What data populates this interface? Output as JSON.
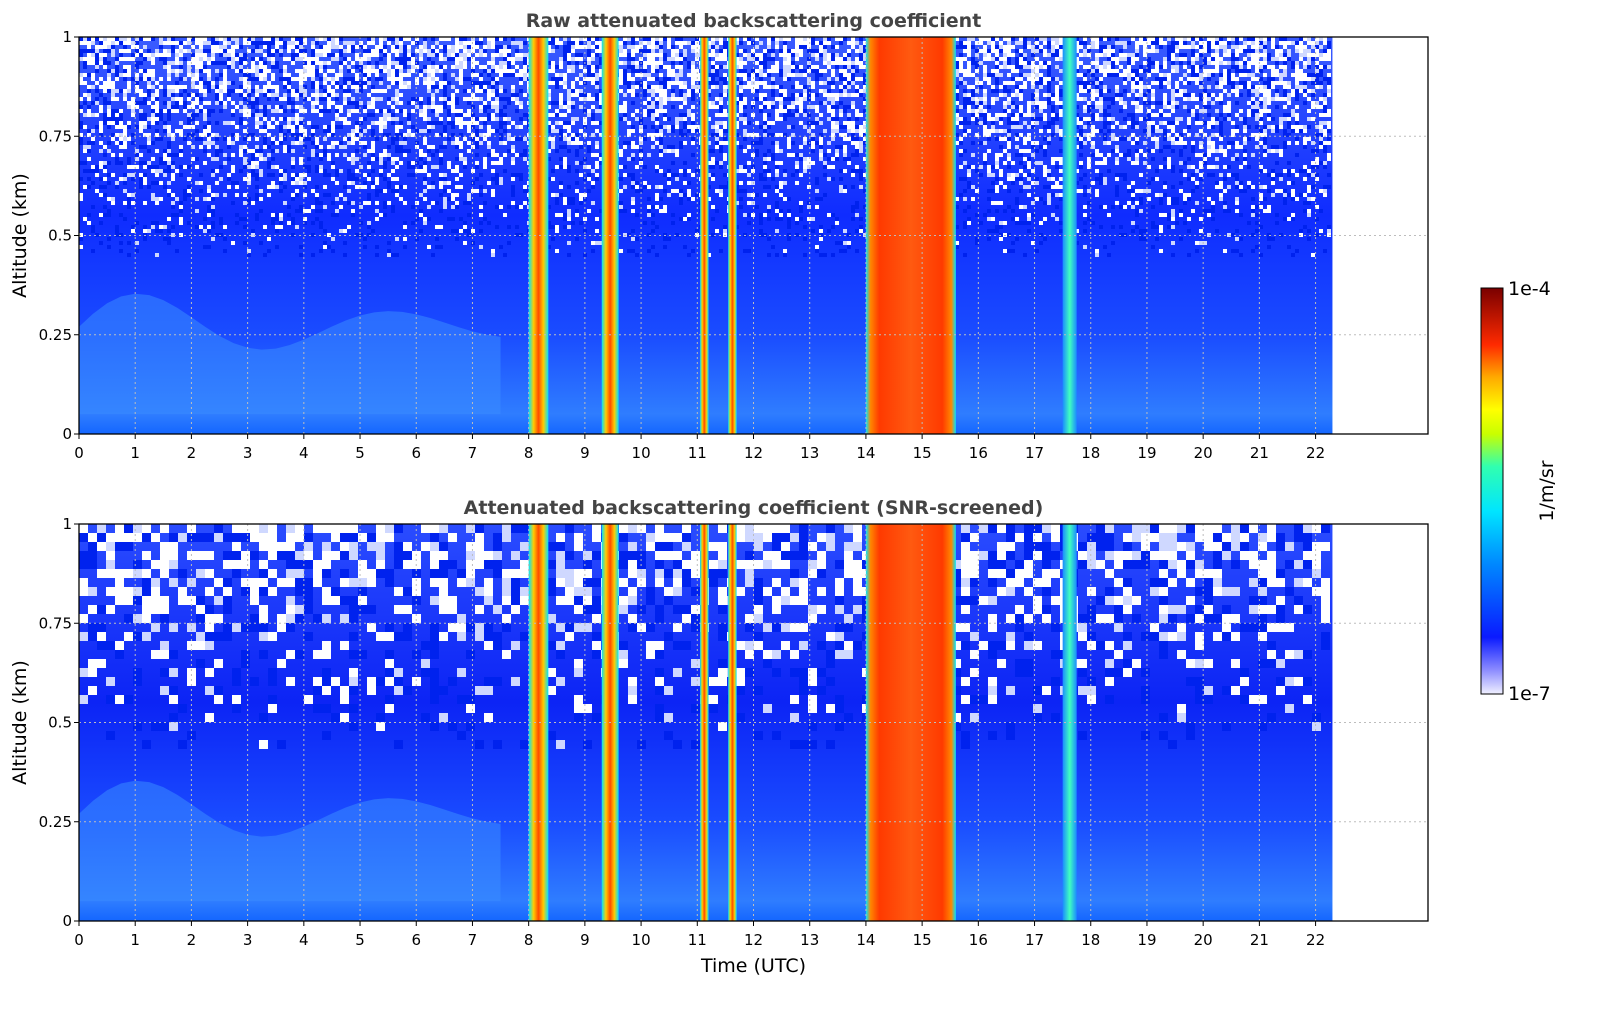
{
  "chart_data": [
    {
      "type": "heatmap",
      "title": "Raw attenuated backscattering coefficient",
      "xlabel": "",
      "ylabel": "Altitude (km)",
      "xlim": [
        0,
        24
      ],
      "ylim": [
        0,
        1
      ],
      "data_end": 22.3,
      "x_ticks": [
        "0",
        "1",
        "2",
        "3",
        "4",
        "5",
        "6",
        "7",
        "8",
        "9",
        "10",
        "11",
        "12",
        "13",
        "14",
        "15",
        "16",
        "17",
        "18",
        "19",
        "20",
        "21",
        "22"
      ],
      "y_ticks": [
        "0",
        "0.25",
        "0.5",
        "0.75",
        "1"
      ],
      "grid": true,
      "screened": false
    },
    {
      "type": "heatmap",
      "title": "Attenuated backscattering coefficient (SNR-screened)",
      "xlabel": "Time (UTC)",
      "ylabel": "Altitude (km)",
      "xlim": [
        0,
        24
      ],
      "ylim": [
        0,
        1
      ],
      "data_end": 22.3,
      "x_ticks": [
        "0",
        "1",
        "2",
        "3",
        "4",
        "5",
        "6",
        "7",
        "8",
        "9",
        "10",
        "11",
        "12",
        "13",
        "14",
        "15",
        "16",
        "17",
        "18",
        "19",
        "20",
        "21",
        "22"
      ],
      "y_ticks": [
        "0",
        "0.25",
        "0.5",
        "0.75",
        "1"
      ],
      "grid": true,
      "screened": true
    }
  ],
  "colorbar": {
    "label": "1/m/sr",
    "max_label": "1e-4",
    "min_label": "1e-7",
    "scale": "log",
    "colormap": [
      "#f0f0ff",
      "#0a1aff",
      "#00e5ff",
      "#ffff00",
      "#ff2a00",
      "#7a0000"
    ]
  },
  "features": {
    "clouds": [
      {
        "start": 8.0,
        "end": 8.35,
        "strength": "strong"
      },
      {
        "start": 9.3,
        "end": 9.6,
        "strength": "strong"
      },
      {
        "start": 11.05,
        "end": 11.2,
        "strength": "strong"
      },
      {
        "start": 11.55,
        "end": 11.7,
        "strength": "strong"
      },
      {
        "start": 14.0,
        "end": 15.6,
        "strength": "very-strong"
      },
      {
        "start": 17.5,
        "end": 17.75,
        "strength": "medium"
      }
    ]
  }
}
